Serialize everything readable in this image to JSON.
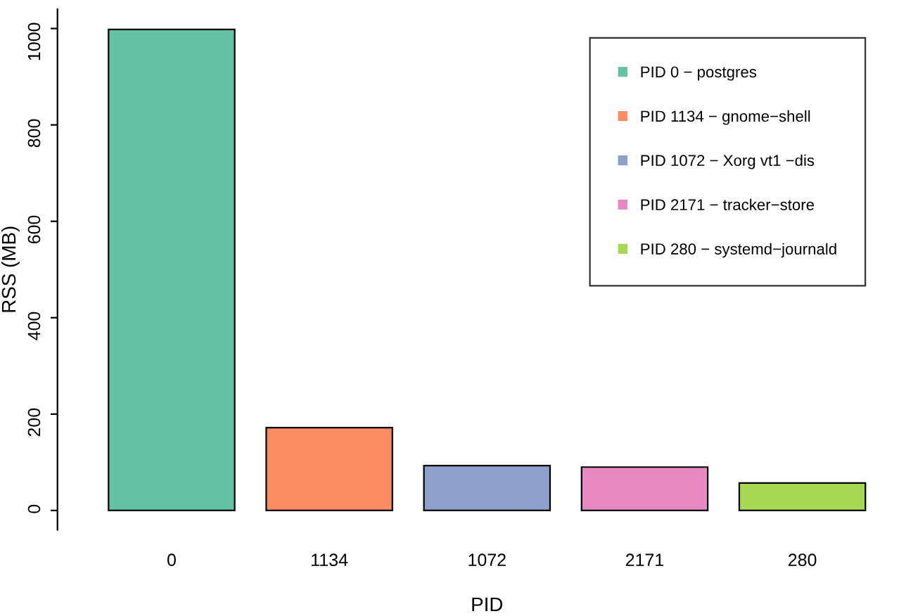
{
  "chart_data": {
    "type": "bar",
    "xlabel": "PID",
    "ylabel": "RSS (MB)",
    "categories": [
      "0",
      "1134",
      "1072",
      "2171",
      "280"
    ],
    "series": [
      {
        "name": "PID 0 − postgres",
        "color": "#66c2a5",
        "values": [
          998,
          null,
          null,
          null,
          null
        ]
      },
      {
        "name": "PID 1134 − gnome−shell",
        "color": "#fc8d62",
        "values": [
          null,
          172,
          null,
          null,
          null
        ]
      },
      {
        "name": "PID 1072 − Xorg vt1 −dis",
        "color": "#8da0cb",
        "values": [
          null,
          null,
          93,
          null,
          null
        ]
      },
      {
        "name": "PID 2171 − tracker−store",
        "color": "#e78ac3",
        "values": [
          null,
          null,
          null,
          90,
          null
        ]
      },
      {
        "name": "PID 280 − systemd−journald",
        "color": "#a6d854",
        "values": [
          null,
          null,
          null,
          null,
          57
        ]
      }
    ],
    "ylim": [
      -40,
      1040
    ],
    "yticks": [
      0,
      200,
      400,
      600,
      800,
      1000
    ],
    "grid": false,
    "legend": "top right"
  }
}
